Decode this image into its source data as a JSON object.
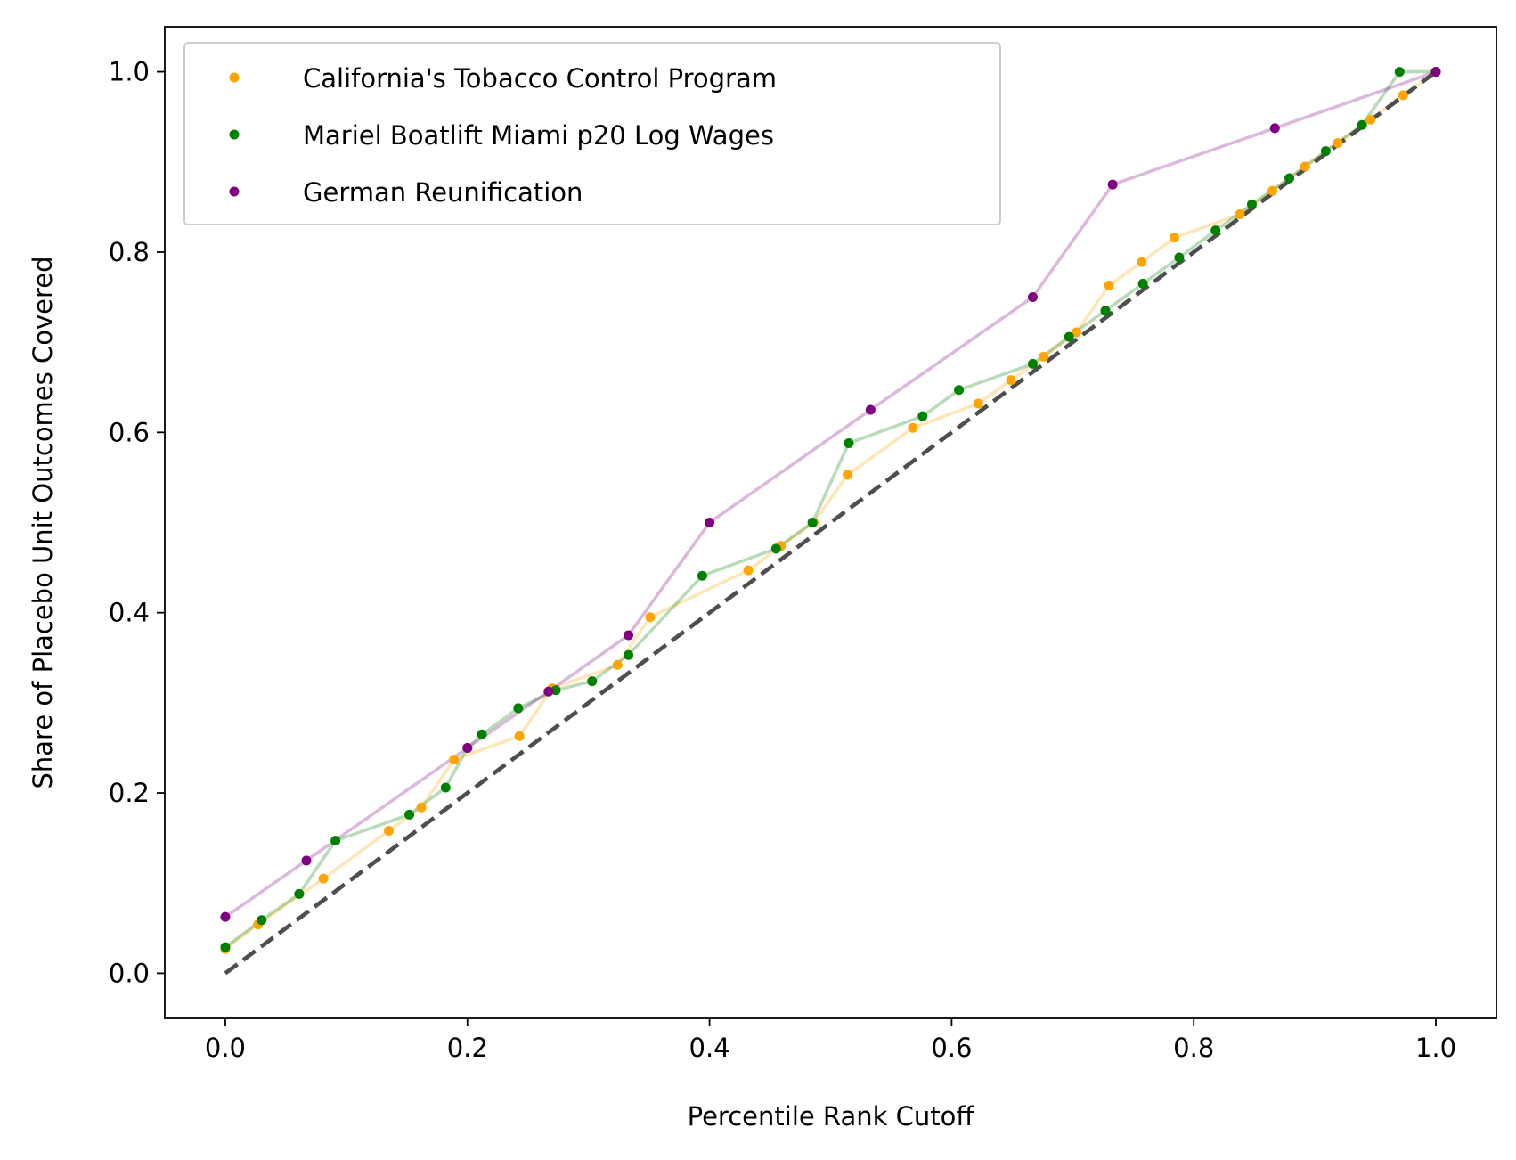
{
  "chart_data": {
    "type": "line",
    "title": "",
    "xlabel": "Percentile Rank Cutoff",
    "ylabel": "Share of Placebo Unit Outcomes Covered",
    "xlim": [
      -0.05,
      1.05
    ],
    "ylim": [
      -0.05,
      1.05
    ],
    "xticks": [
      {
        "value": 0.0,
        "label": "0.0"
      },
      {
        "value": 0.2,
        "label": "0.2"
      },
      {
        "value": 0.4,
        "label": "0.4"
      },
      {
        "value": 0.6,
        "label": "0.6"
      },
      {
        "value": 0.8,
        "label": "0.8"
      },
      {
        "value": 1.0,
        "label": "1.0"
      }
    ],
    "yticks": [
      {
        "value": 0.0,
        "label": "0.0"
      },
      {
        "value": 0.2,
        "label": "0.2"
      },
      {
        "value": 0.4,
        "label": "0.4"
      },
      {
        "value": 0.6,
        "label": "0.6"
      },
      {
        "value": 0.8,
        "label": "0.8"
      },
      {
        "value": 1.0,
        "label": "1.0"
      }
    ],
    "grid": false,
    "legend_position": "top-left",
    "reference_line": {
      "name": "45-degree line",
      "x": [
        0,
        1
      ],
      "y": [
        0,
        1
      ],
      "style": "dashed",
      "color": "#444444"
    },
    "series": [
      {
        "name": "California's Tobacco Control Program",
        "color": "#ffa500",
        "x": [
          0.0,
          0.027,
          0.081,
          0.135,
          0.162,
          0.189,
          0.243,
          0.27,
          0.324,
          0.351,
          0.432,
          0.459,
          0.486,
          0.514,
          0.568,
          0.622,
          0.649,
          0.676,
          0.703,
          0.73,
          0.757,
          0.784,
          0.838,
          0.865,
          0.892,
          0.919,
          0.946,
          0.973,
          1.0
        ],
        "y": [
          0.027,
          0.054,
          0.105,
          0.158,
          0.184,
          0.237,
          0.263,
          0.316,
          0.342,
          0.395,
          0.447,
          0.474,
          0.5,
          0.553,
          0.605,
          0.632,
          0.658,
          0.684,
          0.711,
          0.763,
          0.789,
          0.816,
          0.842,
          0.868,
          0.895,
          0.921,
          0.947,
          0.974,
          1.0
        ]
      },
      {
        "name": "Mariel Boatlift Miami p20 Log Wages",
        "color": "#008000",
        "x": [
          0.0,
          0.03,
          0.061,
          0.091,
          0.152,
          0.182,
          0.2,
          0.212,
          0.242,
          0.273,
          0.303,
          0.333,
          0.394,
          0.455,
          0.485,
          0.515,
          0.576,
          0.606,
          0.667,
          0.697,
          0.727,
          0.758,
          0.788,
          0.818,
          0.848,
          0.879,
          0.909,
          0.939,
          0.97,
          1.0
        ],
        "y": [
          0.029,
          0.059,
          0.088,
          0.147,
          0.176,
          0.206,
          0.25,
          0.265,
          0.294,
          0.314,
          0.324,
          0.353,
          0.441,
          0.471,
          0.5,
          0.588,
          0.618,
          0.647,
          0.676,
          0.706,
          0.735,
          0.765,
          0.794,
          0.824,
          0.853,
          0.882,
          0.912,
          0.941,
          1.0,
          1.0
        ]
      },
      {
        "name": "German Reunification",
        "color": "#800080",
        "x": [
          0.0,
          0.067,
          0.2,
          0.267,
          0.333,
          0.4,
          0.533,
          0.667,
          0.733,
          0.867,
          1.0
        ],
        "y": [
          0.0625,
          0.125,
          0.25,
          0.3125,
          0.375,
          0.5,
          0.625,
          0.75,
          0.875,
          0.9375,
          1.0
        ]
      }
    ]
  }
}
